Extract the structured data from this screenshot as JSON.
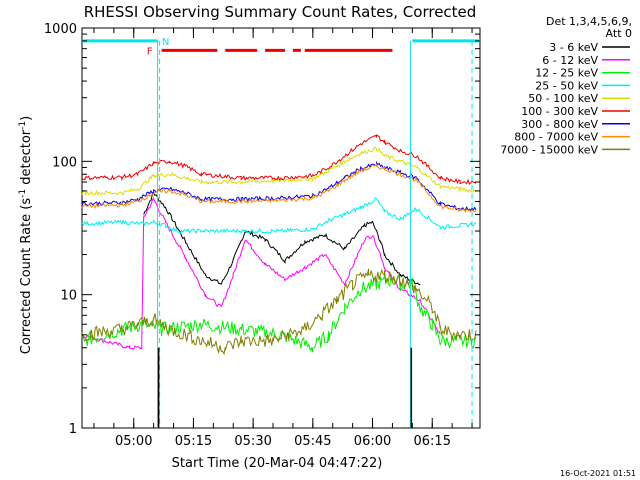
{
  "chart_data": {
    "type": "line",
    "title": "RHESSI Observing Summary Count Rates, Corrected",
    "xlabel": "Start Time (20-Mar-04 04:47:22)",
    "ylabel": "Corrected Count Rate (s-1 detector-1)",
    "ylabel_parts": {
      "main": "Corrected Count Rate (s",
      "sup1": "-1",
      "mid": " detector",
      "sup2": "-1",
      "end": ")"
    },
    "yscale": "log",
    "ylim": [
      1,
      1000
    ],
    "y_ticks": [
      "1",
      "10",
      "100",
      "1000"
    ],
    "x_ticks": [
      "05:00",
      "05:15",
      "05:30",
      "05:45",
      "06:00",
      "06:15"
    ],
    "xlim_minutes_after_0447": [
      0,
      100
    ],
    "x_tick_minutes_after_0447": [
      13,
      28,
      43,
      58,
      73,
      88
    ],
    "legend_header": [
      "Det 1,3,4,5,6,9,",
      "Att 0"
    ],
    "timestamp": "16-Oct-2021 01:51",
    "flag_labels": {
      "F": "F",
      "N": "N"
    },
    "flag_colors": {
      "night": "#00e5ee",
      "flare": "#ee0000"
    },
    "series": [
      {
        "name": "3 - 6 keV",
        "color": "#000000",
        "x": [
          0,
          15,
          15.5,
          18,
          21,
          26,
          31,
          35,
          38,
          41,
          46,
          51,
          56,
          61,
          66,
          71,
          73,
          75,
          76,
          80,
          85,
          90,
          95,
          99
        ],
        "y": [
          null,
          null,
          40,
          58,
          45,
          25,
          14,
          12,
          18,
          30,
          26,
          18,
          25,
          28,
          22,
          33,
          35,
          25,
          20,
          14,
          12,
          null,
          null,
          null
        ]
      },
      {
        "name": "6 - 12 keV",
        "color": "#ff00ff",
        "x": [
          0,
          12,
          15,
          15.5,
          18,
          21,
          26,
          31,
          35,
          38,
          41,
          46,
          51,
          56,
          61,
          66,
          71,
          73,
          75,
          76,
          80,
          85,
          90,
          95,
          99
        ],
        "y": [
          5,
          4,
          4,
          38,
          52,
          35,
          19,
          10,
          8,
          14,
          26,
          17,
          13,
          16,
          20,
          12,
          26,
          28,
          20,
          16,
          11,
          9,
          5,
          null,
          null
        ]
      },
      {
        "name": "12 - 25 keV",
        "color": "#00ee00",
        "x": [
          0,
          15,
          20,
          30,
          40,
          50,
          58,
          62,
          66,
          70,
          74,
          78,
          80,
          83,
          85,
          88,
          90,
          95,
          99
        ],
        "y": [
          4.5,
          6,
          5.5,
          6,
          5.5,
          5,
          4,
          5,
          8,
          11,
          12,
          13,
          12,
          12,
          8,
          6,
          4.5,
          4.5,
          4.5
        ]
      },
      {
        "name": "25 - 50 keV",
        "color": "#00eeee",
        "x": [
          0,
          10,
          15,
          18,
          21,
          24,
          30,
          40,
          50,
          58,
          62,
          66,
          70,
          74,
          76,
          80,
          84,
          90,
          95,
          99
        ],
        "y": [
          34,
          35,
          34,
          35,
          33,
          30,
          30,
          30,
          30,
          31,
          36,
          40,
          45,
          52,
          42,
          37,
          44,
          32,
          33,
          34
        ]
      },
      {
        "name": "50 - 100 keV",
        "color": "#dddd00",
        "x": [
          0,
          10,
          14,
          18,
          22,
          26,
          30,
          40,
          50,
          58,
          62,
          66,
          70,
          74,
          76,
          80,
          84,
          90,
          95,
          99
        ],
        "y": [
          58,
          58,
          62,
          78,
          80,
          75,
          70,
          70,
          72,
          74,
          85,
          100,
          115,
          125,
          110,
          100,
          90,
          65,
          62,
          60
        ]
      },
      {
        "name": "100 - 300 keV",
        "color": "#ee0000",
        "x": [
          0,
          10,
          14,
          18,
          22,
          26,
          30,
          40,
          50,
          58,
          62,
          66,
          70,
          74,
          76,
          80,
          84,
          90,
          95,
          99
        ],
        "y": [
          75,
          76,
          80,
          97,
          100,
          92,
          80,
          75,
          75,
          78,
          90,
          110,
          135,
          155,
          140,
          120,
          110,
          75,
          70,
          70
        ]
      },
      {
        "name": "300 - 800 keV",
        "color": "#0000ee",
        "x": [
          0,
          10,
          14,
          18,
          22,
          26,
          30,
          40,
          50,
          58,
          62,
          66,
          70,
          74,
          76,
          80,
          84,
          90,
          95,
          99
        ],
        "y": [
          48,
          49,
          52,
          60,
          62,
          58,
          52,
          52,
          53,
          55,
          63,
          75,
          88,
          95,
          90,
          82,
          75,
          48,
          44,
          44
        ]
      },
      {
        "name": "800 - 7000 keV",
        "color": "#ff8800",
        "x": [
          0,
          10,
          14,
          18,
          22,
          26,
          30,
          40,
          50,
          58,
          62,
          66,
          70,
          74,
          76,
          80,
          84,
          90,
          95,
          99
        ],
        "y": [
          46,
          47,
          50,
          58,
          60,
          56,
          50,
          50,
          51,
          53,
          60,
          72,
          85,
          92,
          88,
          80,
          72,
          46,
          43,
          43
        ]
      },
      {
        "name": "7000 - 15000 keV",
        "color": "#808000",
        "x": [
          0,
          10,
          14,
          18,
          22,
          26,
          30,
          36,
          40,
          48,
          52,
          56,
          60,
          64,
          68,
          72,
          76,
          80,
          84,
          88,
          90,
          94,
          99
        ],
        "y": [
          5,
          5.5,
          6,
          6.5,
          5.5,
          5,
          4.5,
          4,
          4.5,
          4.5,
          5,
          5.5,
          7,
          9,
          12,
          14,
          14,
          13,
          11,
          8,
          5.5,
          5,
          5
        ]
      }
    ],
    "flag_bars": {
      "night_segments_minutes": [
        [
          0,
          19
        ],
        [
          83,
          100
        ]
      ],
      "flare_segments_minutes": [
        [
          20,
          34
        ],
        [
          36,
          44
        ],
        [
          46,
          51
        ],
        [
          53,
          55
        ],
        [
          56,
          78
        ]
      ],
      "night_vlines_solid_minutes": [
        19,
        82.5
      ],
      "night_vlines_dashed_minutes": [
        19.5,
        98
      ],
      "black_vlines_minutes": [
        19,
        82.5
      ]
    }
  }
}
